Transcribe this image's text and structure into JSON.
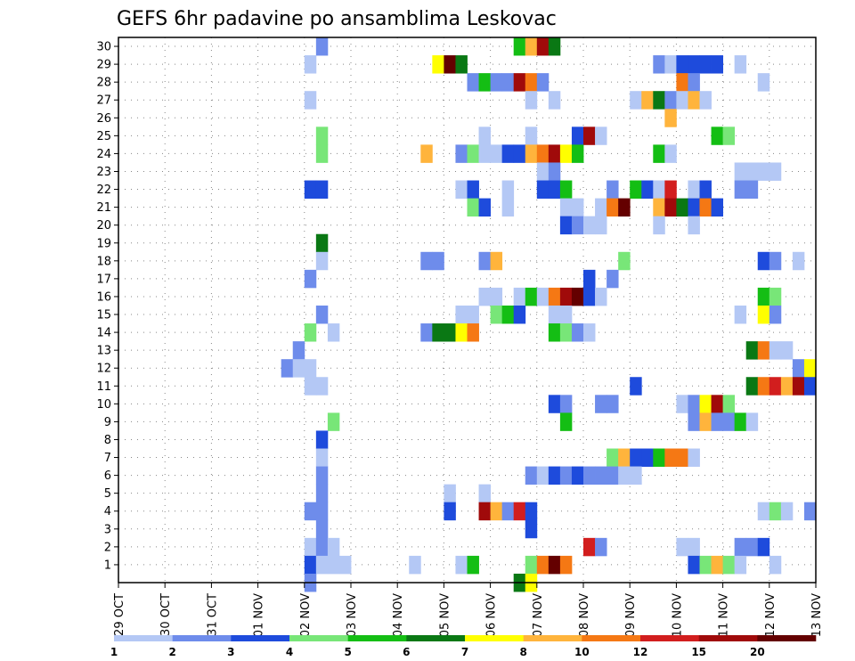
{
  "chart_data": {
    "type": "heatmap",
    "title": "GEFS 6hr padavine po ansamblima Leskovac",
    "xlabel": "",
    "ylabel": "",
    "x_tick_labels": [
      "29 OCT",
      "30 OCT",
      "31 OCT",
      "01 NOV",
      "02 NOV",
      "03 NOV",
      "04 NOV",
      "05 NOV",
      "06 NOV",
      "07 NOV",
      "08 NOV",
      "09 NOV",
      "10 NOV",
      "11 NOV",
      "12 NOV",
      "13 NOV"
    ],
    "y_tick_labels": [
      "1",
      "2",
      "3",
      "4",
      "5",
      "6",
      "7",
      "8",
      "9",
      "10",
      "11",
      "12",
      "13",
      "14",
      "15",
      "16",
      "17",
      "18",
      "19",
      "20",
      "21",
      "22",
      "23",
      "24",
      "25",
      "26",
      "27",
      "28",
      "29",
      "30"
    ],
    "ylim": [
      0,
      30
    ],
    "x_unit": "6-hour step from 29 OCT 00Z",
    "xlim": [
      0,
      60
    ],
    "grid": "dotted",
    "colorbar": {
      "colors": [
        "#b4c8f5",
        "#6e8ceb",
        "#1e4bdc",
        "#78e678",
        "#14be14",
        "#0a7814",
        "#ffff00",
        "#ffb43c",
        "#f57814",
        "#d21e1e",
        "#a00a0a",
        "#640000"
      ],
      "tick_labels": [
        "1",
        "2",
        "3",
        "4",
        "5",
        "6",
        "7",
        "8",
        "10",
        "12",
        "15",
        "20"
      ],
      "bounds": [
        1,
        2,
        3,
        4,
        5,
        6,
        7,
        8,
        10,
        12,
        15,
        20
      ]
    },
    "cells": [
      [
        17,
        30,
        2
      ],
      [
        34,
        30,
        5
      ],
      [
        35,
        30,
        8
      ],
      [
        36,
        30,
        11
      ],
      [
        37,
        30,
        6
      ],
      [
        16,
        29,
        1
      ],
      [
        27,
        29,
        7
      ],
      [
        28,
        29,
        12
      ],
      [
        29,
        29,
        6
      ],
      [
        46,
        29,
        2
      ],
      [
        47,
        29,
        1
      ],
      [
        48,
        29,
        3
      ],
      [
        49,
        29,
        3
      ],
      [
        50,
        29,
        3
      ],
      [
        51,
        29,
        3
      ],
      [
        53,
        29,
        1
      ],
      [
        30,
        28,
        2
      ],
      [
        31,
        28,
        5
      ],
      [
        32,
        28,
        2
      ],
      [
        33,
        28,
        2
      ],
      [
        34,
        28,
        11
      ],
      [
        35,
        28,
        9
      ],
      [
        36,
        28,
        2
      ],
      [
        48,
        28,
        9
      ],
      [
        49,
        28,
        2
      ],
      [
        55,
        28,
        1
      ],
      [
        16,
        27,
        1
      ],
      [
        35,
        27,
        1
      ],
      [
        37,
        27,
        1
      ],
      [
        44,
        27,
        1
      ],
      [
        45,
        27,
        8
      ],
      [
        46,
        27,
        6
      ],
      [
        47,
        27,
        2
      ],
      [
        48,
        27,
        1
      ],
      [
        49,
        27,
        8
      ],
      [
        50,
        27,
        1
      ],
      [
        47,
        26,
        8
      ],
      [
        17,
        25,
        4
      ],
      [
        31,
        25,
        1
      ],
      [
        35,
        25,
        1
      ],
      [
        39,
        25,
        3
      ],
      [
        40,
        25,
        11
      ],
      [
        41,
        25,
        1
      ],
      [
        51,
        25,
        5
      ],
      [
        52,
        25,
        4
      ],
      [
        17,
        24,
        4
      ],
      [
        26,
        24,
        8
      ],
      [
        29,
        24,
        2
      ],
      [
        30,
        24,
        4
      ],
      [
        31,
        24,
        1
      ],
      [
        32,
        24,
        1
      ],
      [
        33,
        24,
        3
      ],
      [
        34,
        24,
        3
      ],
      [
        35,
        24,
        8
      ],
      [
        36,
        24,
        9
      ],
      [
        37,
        24,
        11
      ],
      [
        38,
        24,
        7
      ],
      [
        39,
        24,
        5
      ],
      [
        46,
        24,
        5
      ],
      [
        47,
        24,
        1
      ],
      [
        36,
        23,
        1
      ],
      [
        37,
        23,
        2
      ],
      [
        53,
        23,
        1
      ],
      [
        54,
        23,
        1
      ],
      [
        55,
        23,
        1
      ],
      [
        56,
        23,
        1
      ],
      [
        16,
        22,
        3
      ],
      [
        17,
        22,
        3
      ],
      [
        29,
        22,
        1
      ],
      [
        30,
        22,
        3
      ],
      [
        33,
        22,
        1
      ],
      [
        36,
        22,
        3
      ],
      [
        37,
        22,
        3
      ],
      [
        38,
        22,
        5
      ],
      [
        42,
        22,
        2
      ],
      [
        44,
        22,
        5
      ],
      [
        45,
        22,
        3
      ],
      [
        46,
        22,
        1
      ],
      [
        47,
        22,
        10
      ],
      [
        49,
        22,
        1
      ],
      [
        50,
        22,
        3
      ],
      [
        53,
        22,
        2
      ],
      [
        54,
        22,
        2
      ],
      [
        30,
        21,
        4
      ],
      [
        31,
        21,
        3
      ],
      [
        33,
        21,
        1
      ],
      [
        38,
        21,
        1
      ],
      [
        39,
        21,
        1
      ],
      [
        41,
        21,
        1
      ],
      [
        42,
        21,
        9
      ],
      [
        43,
        21,
        12
      ],
      [
        46,
        21,
        8
      ],
      [
        47,
        21,
        11
      ],
      [
        48,
        21,
        6
      ],
      [
        49,
        21,
        3
      ],
      [
        50,
        21,
        9
      ],
      [
        51,
        21,
        3
      ],
      [
        38,
        20,
        3
      ],
      [
        39,
        20,
        2
      ],
      [
        40,
        20,
        1
      ],
      [
        41,
        20,
        1
      ],
      [
        46,
        20,
        1
      ],
      [
        49,
        20,
        1
      ],
      [
        17,
        19,
        6
      ],
      [
        17,
        18,
        1
      ],
      [
        26,
        18,
        2
      ],
      [
        27,
        18,
        2
      ],
      [
        31,
        18,
        2
      ],
      [
        32,
        18,
        8
      ],
      [
        43,
        18,
        4
      ],
      [
        55,
        18,
        3
      ],
      [
        56,
        18,
        2
      ],
      [
        58,
        18,
        1
      ],
      [
        16,
        17,
        2
      ],
      [
        40,
        17,
        3
      ],
      [
        42,
        17,
        2
      ],
      [
        31,
        16,
        1
      ],
      [
        32,
        16,
        1
      ],
      [
        34,
        16,
        1
      ],
      [
        35,
        16,
        5
      ],
      [
        36,
        16,
        1
      ],
      [
        37,
        16,
        9
      ],
      [
        38,
        16,
        11
      ],
      [
        39,
        16,
        12
      ],
      [
        40,
        16,
        3
      ],
      [
        41,
        16,
        1
      ],
      [
        55,
        16,
        5
      ],
      [
        56,
        16,
        4
      ],
      [
        17,
        15,
        2
      ],
      [
        29,
        15,
        1
      ],
      [
        30,
        15,
        1
      ],
      [
        32,
        15,
        4
      ],
      [
        33,
        15,
        5
      ],
      [
        34,
        15,
        3
      ],
      [
        37,
        15,
        1
      ],
      [
        38,
        15,
        1
      ],
      [
        53,
        15,
        1
      ],
      [
        55,
        15,
        7
      ],
      [
        56,
        15,
        2
      ],
      [
        16,
        14,
        4
      ],
      [
        18,
        14,
        1
      ],
      [
        26,
        14,
        2
      ],
      [
        27,
        14,
        6
      ],
      [
        28,
        14,
        6
      ],
      [
        29,
        14,
        7
      ],
      [
        30,
        14,
        9
      ],
      [
        37,
        14,
        5
      ],
      [
        38,
        14,
        4
      ],
      [
        39,
        14,
        2
      ],
      [
        40,
        14,
        1
      ],
      [
        15,
        13,
        2
      ],
      [
        54,
        13,
        6
      ],
      [
        55,
        13,
        9
      ],
      [
        56,
        13,
        1
      ],
      [
        57,
        13,
        1
      ],
      [
        14,
        12,
        2
      ],
      [
        15,
        12,
        1
      ],
      [
        16,
        12,
        1
      ],
      [
        58,
        12,
        2
      ],
      [
        59,
        12,
        7
      ],
      [
        16,
        11,
        1
      ],
      [
        17,
        11,
        1
      ],
      [
        44,
        11,
        3
      ],
      [
        54,
        11,
        6
      ],
      [
        55,
        11,
        9
      ],
      [
        56,
        11,
        10
      ],
      [
        57,
        11,
        8
      ],
      [
        58,
        11,
        11
      ],
      [
        59,
        11,
        3
      ],
      [
        37,
        10,
        3
      ],
      [
        38,
        10,
        2
      ],
      [
        41,
        10,
        2
      ],
      [
        42,
        10,
        2
      ],
      [
        48,
        10,
        1
      ],
      [
        49,
        10,
        2
      ],
      [
        50,
        10,
        7
      ],
      [
        51,
        10,
        11
      ],
      [
        52,
        10,
        4
      ],
      [
        18,
        9,
        4
      ],
      [
        38,
        9,
        5
      ],
      [
        49,
        9,
        2
      ],
      [
        50,
        9,
        8
      ],
      [
        51,
        9,
        2
      ],
      [
        52,
        9,
        2
      ],
      [
        53,
        9,
        5
      ],
      [
        54,
        9,
        1
      ],
      [
        17,
        8,
        3
      ],
      [
        17,
        7,
        1
      ],
      [
        42,
        7,
        4
      ],
      [
        43,
        7,
        8
      ],
      [
        44,
        7,
        3
      ],
      [
        45,
        7,
        3
      ],
      [
        46,
        7,
        5
      ],
      [
        47,
        7,
        9
      ],
      [
        48,
        7,
        9
      ],
      [
        49,
        7,
        1
      ],
      [
        17,
        6,
        2
      ],
      [
        35,
        6,
        2
      ],
      [
        36,
        6,
        1
      ],
      [
        37,
        6,
        3
      ],
      [
        38,
        6,
        2
      ],
      [
        39,
        6,
        3
      ],
      [
        40,
        6,
        2
      ],
      [
        41,
        6,
        2
      ],
      [
        42,
        6,
        2
      ],
      [
        43,
        6,
        1
      ],
      [
        44,
        6,
        1
      ],
      [
        17,
        5,
        2
      ],
      [
        28,
        5,
        1
      ],
      [
        31,
        5,
        1
      ],
      [
        16,
        4,
        2
      ],
      [
        17,
        4,
        2
      ],
      [
        28,
        4,
        3
      ],
      [
        31,
        4,
        11
      ],
      [
        32,
        4,
        8
      ],
      [
        33,
        4,
        2
      ],
      [
        34,
        4,
        10
      ],
      [
        35,
        4,
        3
      ],
      [
        55,
        4,
        1
      ],
      [
        56,
        4,
        4
      ],
      [
        57,
        4,
        1
      ],
      [
        59,
        4,
        2
      ],
      [
        17,
        3,
        2
      ],
      [
        35,
        3,
        3
      ],
      [
        16,
        2,
        1
      ],
      [
        17,
        2,
        2
      ],
      [
        18,
        2,
        1
      ],
      [
        40,
        2,
        10
      ],
      [
        41,
        2,
        2
      ],
      [
        48,
        2,
        1
      ],
      [
        49,
        2,
        1
      ],
      [
        53,
        2,
        2
      ],
      [
        54,
        2,
        2
      ],
      [
        55,
        2,
        3
      ],
      [
        16,
        1,
        3
      ],
      [
        17,
        1,
        1
      ],
      [
        18,
        1,
        1
      ],
      [
        19,
        1,
        1
      ],
      [
        25,
        1,
        1
      ],
      [
        29,
        1,
        1
      ],
      [
        30,
        1,
        5
      ],
      [
        35,
        1,
        4
      ],
      [
        36,
        1,
        9
      ],
      [
        37,
        1,
        12
      ],
      [
        38,
        1,
        9
      ],
      [
        49,
        1,
        3
      ],
      [
        50,
        1,
        4
      ],
      [
        51,
        1,
        8
      ],
      [
        52,
        1,
        4
      ],
      [
        53,
        1,
        1
      ],
      [
        56,
        1,
        1
      ],
      [
        16,
        0,
        2
      ],
      [
        34,
        0,
        6
      ],
      [
        35,
        0,
        7
      ]
    ]
  }
}
